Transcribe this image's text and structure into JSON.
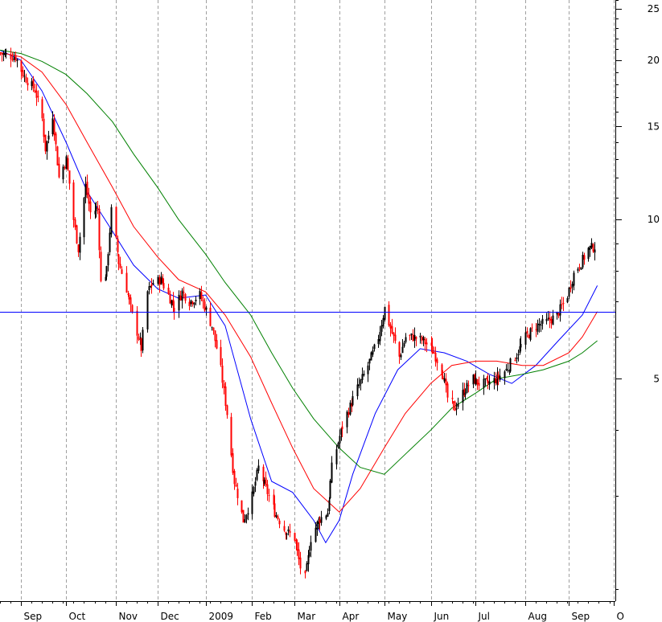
{
  "chart_data": {
    "type": "candlestick",
    "title": "",
    "xlabel": "",
    "ylabel": "",
    "y_scale": "log",
    "ylim": [
      1.9,
      26
    ],
    "x_range": [
      "2008-08-18",
      "2009-10-02"
    ],
    "grid": {
      "x": true,
      "y": false
    },
    "y_ticks": [
      {
        "value": 25,
        "label": "25"
      },
      {
        "value": 20,
        "label": "20"
      },
      {
        "value": 15,
        "label": "15"
      },
      {
        "value": 10,
        "label": "10"
      },
      {
        "value": 5,
        "label": "5"
      }
    ],
    "x_ticks": [
      {
        "date": "2008-09-01",
        "label": "Sep"
      },
      {
        "date": "2008-10-01",
        "label": "Oct"
      },
      {
        "date": "2008-11-03",
        "label": "Nov"
      },
      {
        "date": "2008-12-01",
        "label": "Dec"
      },
      {
        "date": "2009-01-02",
        "label": "2009"
      },
      {
        "date": "2009-02-02",
        "label": "Feb"
      },
      {
        "date": "2009-03-02",
        "label": "Mar"
      },
      {
        "date": "2009-04-01",
        "label": "Apr"
      },
      {
        "date": "2009-05-01",
        "label": "May"
      },
      {
        "date": "2009-06-01",
        "label": "Jun"
      },
      {
        "date": "2009-07-01",
        "label": "Jul"
      },
      {
        "date": "2009-08-03",
        "label": "Aug"
      },
      {
        "date": "2009-09-01",
        "label": "Sep"
      },
      {
        "date": "2009-10-01",
        "label": "O"
      }
    ],
    "horizontal_line": {
      "value": 6.7,
      "color": "#0000ff"
    },
    "colors": {
      "up": "#000000",
      "down": "#ff0000",
      "ma_short": "#0000ff",
      "ma_mid": "#ff0000",
      "ma_long": "#008000"
    },
    "price_path": [
      [
        "2008-08-18",
        20.6
      ],
      [
        "2008-08-28",
        20.3
      ],
      [
        "2008-09-03",
        18.6
      ],
      [
        "2008-09-10",
        17.6
      ],
      [
        "2008-09-15",
        15.5
      ],
      [
        "2008-09-17",
        13.6
      ],
      [
        "2008-09-22",
        15.8
      ],
      [
        "2008-09-26",
        12.0
      ],
      [
        "2008-10-01",
        13.0
      ],
      [
        "2008-10-06",
        10.0
      ],
      [
        "2008-10-09",
        8.8
      ],
      [
        "2008-10-14",
        11.6
      ],
      [
        "2008-10-17",
        10.3
      ],
      [
        "2008-10-22",
        10.5
      ],
      [
        "2008-10-24",
        7.6
      ],
      [
        "2008-10-28",
        8.0
      ],
      [
        "2008-10-31",
        10.4
      ],
      [
        "2008-11-05",
        8.3
      ],
      [
        "2008-11-10",
        7.4
      ],
      [
        "2008-11-14",
        6.6
      ],
      [
        "2008-11-20",
        5.7
      ],
      [
        "2008-11-24",
        7.3
      ],
      [
        "2008-11-28",
        7.6
      ],
      [
        "2008-12-03",
        7.7
      ],
      [
        "2008-12-08",
        7.2
      ],
      [
        "2008-12-12",
        6.8
      ],
      [
        "2008-12-17",
        7.3
      ],
      [
        "2008-12-22",
        7.0
      ],
      [
        "2008-12-29",
        7.2
      ],
      [
        "2009-01-06",
        6.3
      ],
      [
        "2009-01-12",
        5.2
      ],
      [
        "2009-01-16",
        4.3
      ],
      [
        "2009-01-21",
        3.2
      ],
      [
        "2009-01-27",
        2.7
      ],
      [
        "2009-02-02",
        3.0
      ],
      [
        "2009-02-06",
        3.4
      ],
      [
        "2009-02-11",
        3.1
      ],
      [
        "2009-02-17",
        2.8
      ],
      [
        "2009-02-23",
        2.6
      ],
      [
        "2009-03-02",
        2.5
      ],
      [
        "2009-03-06",
        2.2
      ],
      [
        "2009-03-09",
        2.1
      ],
      [
        "2009-03-13",
        2.5
      ],
      [
        "2009-03-18",
        2.7
      ],
      [
        "2009-03-24",
        2.8
      ],
      [
        "2009-03-27",
        3.4
      ],
      [
        "2009-04-01",
        3.9
      ],
      [
        "2009-04-06",
        4.3
      ],
      [
        "2009-04-13",
        4.8
      ],
      [
        "2009-04-20",
        5.3
      ],
      [
        "2009-04-27",
        6.0
      ],
      [
        "2009-05-01",
        6.8
      ],
      [
        "2009-05-06",
        6.1
      ],
      [
        "2009-05-11",
        5.5
      ],
      [
        "2009-05-15",
        6.0
      ],
      [
        "2009-05-20",
        6.0
      ],
      [
        "2009-05-27",
        5.9
      ],
      [
        "2009-06-03",
        5.6
      ],
      [
        "2009-06-09",
        5.1
      ],
      [
        "2009-06-12",
        4.6
      ],
      [
        "2009-06-17",
        4.4
      ],
      [
        "2009-06-22",
        4.7
      ],
      [
        "2009-06-29",
        5.0
      ],
      [
        "2009-07-03",
        4.9
      ],
      [
        "2009-07-09",
        4.9
      ],
      [
        "2009-07-15",
        5.0
      ],
      [
        "2009-07-21",
        5.2
      ],
      [
        "2009-07-27",
        5.5
      ],
      [
        "2009-08-03",
        6.0
      ],
      [
        "2009-08-10",
        6.3
      ],
      [
        "2009-08-17",
        6.4
      ],
      [
        "2009-08-24",
        6.6
      ],
      [
        "2009-08-31",
        7.2
      ],
      [
        "2009-09-04",
        7.9
      ],
      [
        "2009-09-09",
        8.3
      ],
      [
        "2009-09-14",
        8.8
      ],
      [
        "2009-09-18",
        8.9
      ]
    ],
    "series": [
      {
        "color": "#0000ff",
        "points": [
          [
            "2008-08-18",
            20.9
          ],
          [
            "2008-09-01",
            20.0
          ],
          [
            "2008-09-15",
            17.5
          ],
          [
            "2008-10-01",
            14.0
          ],
          [
            "2008-10-15",
            11.3
          ],
          [
            "2008-11-01",
            9.5
          ],
          [
            "2008-11-15",
            8.2
          ],
          [
            "2008-12-01",
            7.4
          ],
          [
            "2008-12-15",
            7.1
          ],
          [
            "2009-01-02",
            7.2
          ],
          [
            "2009-01-15",
            6.3
          ],
          [
            "2009-02-01",
            4.2
          ],
          [
            "2009-02-15",
            3.2
          ],
          [
            "2009-03-01",
            3.05
          ],
          [
            "2009-03-15",
            2.7
          ],
          [
            "2009-03-23",
            2.45
          ],
          [
            "2009-04-01",
            2.7
          ],
          [
            "2009-04-10",
            3.3
          ],
          [
            "2009-04-25",
            4.3
          ],
          [
            "2009-05-10",
            5.2
          ],
          [
            "2009-05-25",
            5.7
          ],
          [
            "2009-06-10",
            5.6
          ],
          [
            "2009-06-25",
            5.4
          ],
          [
            "2009-07-10",
            5.1
          ],
          [
            "2009-07-25",
            4.9
          ],
          [
            "2009-08-10",
            5.3
          ],
          [
            "2009-08-25",
            5.9
          ],
          [
            "2009-09-10",
            6.6
          ],
          [
            "2009-09-20",
            7.5
          ]
        ]
      },
      {
        "color": "#ff0000",
        "points": [
          [
            "2008-08-18",
            20.7
          ],
          [
            "2008-09-01",
            20.3
          ],
          [
            "2008-09-15",
            19.0
          ],
          [
            "2008-10-01",
            16.5
          ],
          [
            "2008-10-15",
            14.0
          ],
          [
            "2008-11-01",
            11.5
          ],
          [
            "2008-11-15",
            9.7
          ],
          [
            "2008-12-01",
            8.5
          ],
          [
            "2008-12-15",
            7.7
          ],
          [
            "2009-01-02",
            7.3
          ],
          [
            "2009-01-15",
            6.6
          ],
          [
            "2009-02-01",
            5.5
          ],
          [
            "2009-02-15",
            4.5
          ],
          [
            "2009-03-01",
            3.7
          ],
          [
            "2009-03-15",
            3.1
          ],
          [
            "2009-04-01",
            2.8
          ],
          [
            "2009-04-15",
            3.1
          ],
          [
            "2009-05-01",
            3.7
          ],
          [
            "2009-05-15",
            4.3
          ],
          [
            "2009-06-01",
            4.9
          ],
          [
            "2009-06-15",
            5.3
          ],
          [
            "2009-07-01",
            5.4
          ],
          [
            "2009-07-15",
            5.4
          ],
          [
            "2009-08-01",
            5.3
          ],
          [
            "2009-08-15",
            5.3
          ],
          [
            "2009-09-01",
            5.6
          ],
          [
            "2009-09-10",
            6.0
          ],
          [
            "2009-09-20",
            6.7
          ]
        ]
      },
      {
        "color": "#008000",
        "points": [
          [
            "2008-08-18",
            20.9
          ],
          [
            "2008-09-01",
            20.6
          ],
          [
            "2008-09-15",
            19.9
          ],
          [
            "2008-10-01",
            18.8
          ],
          [
            "2008-10-15",
            17.3
          ],
          [
            "2008-11-01",
            15.3
          ],
          [
            "2008-11-15",
            13.3
          ],
          [
            "2008-12-01",
            11.5
          ],
          [
            "2008-12-15",
            10.0
          ],
          [
            "2009-01-02",
            8.6
          ],
          [
            "2009-01-15",
            7.6
          ],
          [
            "2009-02-01",
            6.6
          ],
          [
            "2009-02-15",
            5.6
          ],
          [
            "2009-03-01",
            4.8
          ],
          [
            "2009-03-15",
            4.2
          ],
          [
            "2009-04-01",
            3.7
          ],
          [
            "2009-04-15",
            3.4
          ],
          [
            "2009-05-01",
            3.3
          ],
          [
            "2009-05-15",
            3.6
          ],
          [
            "2009-06-01",
            4.0
          ],
          [
            "2009-06-15",
            4.4
          ],
          [
            "2009-07-01",
            4.7
          ],
          [
            "2009-07-15",
            5.0
          ],
          [
            "2009-08-01",
            5.1
          ],
          [
            "2009-08-15",
            5.2
          ],
          [
            "2009-09-01",
            5.4
          ],
          [
            "2009-09-10",
            5.6
          ],
          [
            "2009-09-20",
            5.9
          ]
        ]
      }
    ]
  }
}
